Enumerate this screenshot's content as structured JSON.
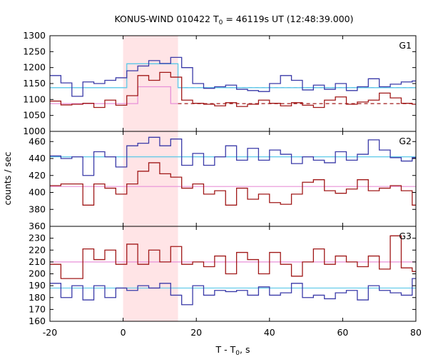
{
  "chart_data": [
    {
      "type": "line",
      "panel_label": "G1",
      "title": "KONUS-WIND 010422 T0 = 46119s UT (12:48:39.000)",
      "title_parts": [
        "KONUS-WIND 010422 T",
        "0",
        " = 46119s UT (12:48:39.000)"
      ],
      "xlim": [
        -20,
        80
      ],
      "ylim": [
        1000,
        1300
      ],
      "yticks": [
        1000,
        1050,
        1100,
        1150,
        1200,
        1250,
        1300
      ],
      "grid": false,
      "bin_edges": [
        -20,
        -17,
        -14,
        -11,
        -8,
        -5,
        -2,
        1,
        4,
        7,
        10,
        13,
        16,
        19,
        22,
        25,
        28,
        31,
        34,
        37,
        40,
        43,
        46,
        49,
        52,
        55,
        58,
        61,
        64,
        67,
        70,
        73,
        76,
        79,
        80
      ],
      "series": [
        {
          "color": "#3a3aa8",
          "values": [
            1175,
            1152,
            1110,
            1155,
            1150,
            1160,
            1168,
            1190,
            1205,
            1222,
            1213,
            1232,
            1200,
            1150,
            1135,
            1140,
            1145,
            1132,
            1128,
            1125,
            1150,
            1175,
            1160,
            1130,
            1145,
            1132,
            1150,
            1128,
            1140,
            1165,
            1140,
            1148,
            1155,
            1158
          ]
        },
        {
          "color": "#a01818",
          "values": [
            1095,
            1083,
            1085,
            1088,
            1075,
            1098,
            1082,
            1112,
            1175,
            1160,
            1185,
            1170,
            1098,
            1088,
            1085,
            1080,
            1090,
            1078,
            1085,
            1098,
            1088,
            1080,
            1090,
            1082,
            1075,
            1098,
            1108,
            1085,
            1092,
            1098,
            1120,
            1105,
            1088,
            1085
          ]
        }
      ],
      "background_levels": [
        {
          "color": "#3a3aa8",
          "value": 1137,
          "from": 15,
          "to": 80,
          "style": "dashed"
        },
        {
          "color": "#a01818",
          "value": 1087,
          "from": 15,
          "to": 80,
          "style": "dashed"
        }
      ],
      "fit_lines": [
        {
          "color": "#5bc8e8",
          "segments": [
            [
              -20,
              1137
            ],
            [
              0,
              1137
            ],
            [
              0,
              1137
            ],
            [
              1,
              1137
            ],
            [
              1,
              1212
            ],
            [
              15,
              1212
            ],
            [
              15,
              1137
            ],
            [
              80,
              1137
            ]
          ]
        },
        {
          "color": "#e890d8",
          "segments": [
            [
              -20,
              1087
            ],
            [
              4,
              1087
            ],
            [
              4,
              1140
            ],
            [
              13,
              1140
            ],
            [
              13,
              1087
            ],
            [
              15,
              1087
            ]
          ]
        }
      ]
    },
    {
      "type": "line",
      "panel_label": "G2",
      "xlim": [
        -20,
        80
      ],
      "ylim": [
        360,
        472
      ],
      "yticks": [
        360,
        380,
        400,
        420,
        440,
        460
      ],
      "grid": false,
      "bin_edges": [
        -20,
        -17,
        -14,
        -11,
        -8,
        -5,
        -2,
        1,
        4,
        7,
        10,
        13,
        16,
        19,
        22,
        25,
        28,
        31,
        34,
        37,
        40,
        43,
        46,
        49,
        52,
        55,
        58,
        61,
        64,
        67,
        70,
        73,
        76,
        79,
        80
      ],
      "series": [
        {
          "color": "#3a3aa8",
          "values": [
            443,
            440,
            442,
            420,
            448,
            442,
            430,
            455,
            458,
            465,
            455,
            463,
            432,
            446,
            432,
            442,
            455,
            438,
            452,
            438,
            450,
            445,
            434,
            442,
            438,
            435,
            448,
            438,
            445,
            462,
            450,
            441,
            437,
            441
          ]
        },
        {
          "color": "#a01818",
          "values": [
            408,
            410,
            410,
            385,
            410,
            405,
            398,
            410,
            425,
            435,
            422,
            418,
            405,
            410,
            398,
            402,
            385,
            405,
            392,
            398,
            388,
            386,
            398,
            412,
            415,
            402,
            399,
            404,
            415,
            402,
            405,
            408,
            402,
            385
          ]
        }
      ],
      "background_levels": [
        {
          "color": "#5bc8e8",
          "value": 442,
          "from": -20,
          "to": 80,
          "style": "solid"
        },
        {
          "color": "#e890d8",
          "value": 407,
          "from": -20,
          "to": 80,
          "style": "solid"
        }
      ]
    },
    {
      "type": "line",
      "panel_label": "G3",
      "xlim": [
        -20,
        80
      ],
      "ylim": [
        160,
        240
      ],
      "yticks": [
        160,
        170,
        180,
        190,
        200,
        210,
        220,
        230
      ],
      "grid": false,
      "xticks": [
        -20,
        0,
        20,
        40,
        60,
        80
      ],
      "xlabel_parts": [
        "T - T",
        "0",
        ", s"
      ],
      "ylabel": "counts / sec",
      "bin_edges": [
        -20,
        -17,
        -14,
        -11,
        -8,
        -5,
        -2,
        1,
        4,
        7,
        10,
        13,
        16,
        19,
        22,
        25,
        28,
        31,
        34,
        37,
        40,
        43,
        46,
        49,
        52,
        55,
        58,
        61,
        64,
        67,
        70,
        73,
        76,
        79,
        80
      ],
      "series": [
        {
          "color": "#3a3aa8",
          "values": [
            192,
            180,
            190,
            178,
            190,
            180,
            188,
            186,
            190,
            188,
            192,
            182,
            174,
            190,
            182,
            186,
            185,
            186,
            182,
            189,
            182,
            184,
            192,
            180,
            182,
            179,
            184,
            186,
            178,
            190,
            186,
            184,
            182,
            196
          ]
        },
        {
          "color": "#a01818",
          "values": [
            208,
            196,
            196,
            221,
            212,
            220,
            208,
            225,
            208,
            220,
            210,
            223,
            208,
            210,
            206,
            215,
            200,
            218,
            212,
            200,
            218,
            208,
            198,
            210,
            221,
            208,
            215,
            210,
            206,
            215,
            204,
            232,
            205,
            202
          ]
        }
      ],
      "background_levels": [
        {
          "color": "#e890d8",
          "value": 210,
          "from": -20,
          "to": 80,
          "style": "solid"
        },
        {
          "color": "#5bc8e8",
          "value": 188,
          "from": -20,
          "to": 80,
          "style": "solid"
        }
      ]
    }
  ],
  "highlight_interval": {
    "from": 0,
    "to": 15,
    "color": "#ffe4e6"
  }
}
